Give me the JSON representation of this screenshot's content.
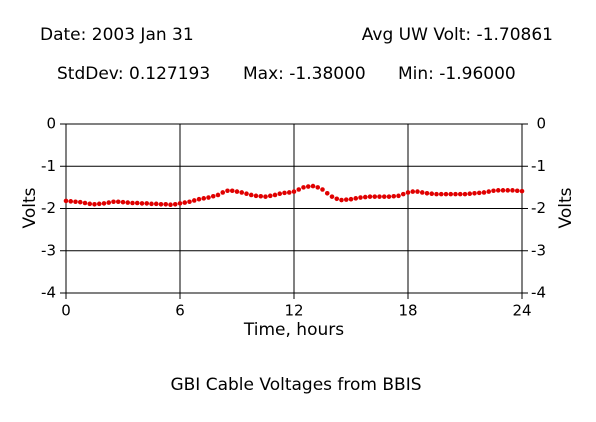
{
  "chart_data": {
    "type": "scatter",
    "header": {
      "date": "Date: 2003 Jan 31",
      "avg": "Avg UW Volt: -1.70861",
      "stddev": "StdDev: 0.127193",
      "max": "Max: -1.38000",
      "min": "Min: -1.96000"
    },
    "title": "GBI Cable Voltages from BBIS",
    "xlabel": "Time, hours",
    "ylabel": "Volts",
    "y2label": "Volts",
    "xlim": [
      0,
      24
    ],
    "xticks": [
      0,
      6,
      12,
      18,
      24
    ],
    "ylim": [
      -4,
      0
    ],
    "yticks": [
      0,
      -1,
      -2,
      -3,
      -4
    ],
    "y2lim": [
      -4,
      0
    ],
    "y2ticks": [
      0,
      -1,
      -2,
      -3,
      -4
    ],
    "grid": true,
    "color": "#e00000",
    "x": [
      0,
      0.25,
      0.5,
      0.75,
      1,
      1.25,
      1.5,
      1.75,
      2,
      2.25,
      2.5,
      2.75,
      3,
      3.25,
      3.5,
      3.75,
      4,
      4.25,
      4.5,
      4.75,
      5,
      5.25,
      5.5,
      5.75,
      6,
      6.25,
      6.5,
      6.75,
      7,
      7.25,
      7.5,
      7.75,
      8,
      8.25,
      8.5,
      8.75,
      9,
      9.25,
      9.5,
      9.75,
      10,
      10.25,
      10.5,
      10.75,
      11,
      11.25,
      11.5,
      11.75,
      12,
      12.25,
      12.5,
      12.75,
      13,
      13.25,
      13.5,
      13.75,
      14,
      14.25,
      14.5,
      14.75,
      15,
      15.25,
      15.5,
      15.75,
      16,
      16.25,
      16.5,
      16.75,
      17,
      17.25,
      17.5,
      17.75,
      18,
      18.25,
      18.5,
      18.75,
      19,
      19.25,
      19.5,
      19.75,
      20,
      20.25,
      20.5,
      20.75,
      21,
      21.25,
      21.5,
      21.75,
      22,
      22.25,
      22.5,
      22.75,
      23,
      23.25,
      23.5,
      23.75,
      24
    ],
    "values": [
      -1.82,
      -1.83,
      -1.84,
      -1.85,
      -1.87,
      -1.89,
      -1.9,
      -1.89,
      -1.88,
      -1.86,
      -1.84,
      -1.84,
      -1.85,
      -1.86,
      -1.87,
      -1.87,
      -1.88,
      -1.88,
      -1.89,
      -1.89,
      -1.9,
      -1.9,
      -1.91,
      -1.9,
      -1.88,
      -1.86,
      -1.84,
      -1.81,
      -1.78,
      -1.76,
      -1.74,
      -1.71,
      -1.68,
      -1.62,
      -1.58,
      -1.58,
      -1.6,
      -1.62,
      -1.65,
      -1.68,
      -1.7,
      -1.71,
      -1.72,
      -1.7,
      -1.68,
      -1.65,
      -1.63,
      -1.62,
      -1.6,
      -1.55,
      -1.5,
      -1.48,
      -1.47,
      -1.5,
      -1.55,
      -1.64,
      -1.72,
      -1.77,
      -1.8,
      -1.79,
      -1.78,
      -1.76,
      -1.74,
      -1.73,
      -1.72,
      -1.72,
      -1.72,
      -1.72,
      -1.72,
      -1.71,
      -1.7,
      -1.66,
      -1.62,
      -1.6,
      -1.6,
      -1.62,
      -1.64,
      -1.65,
      -1.66,
      -1.66,
      -1.66,
      -1.66,
      -1.66,
      -1.66,
      -1.66,
      -1.65,
      -1.64,
      -1.63,
      -1.62,
      -1.6,
      -1.58,
      -1.57,
      -1.57,
      -1.57,
      -1.57,
      -1.58,
      -1.59
    ]
  }
}
